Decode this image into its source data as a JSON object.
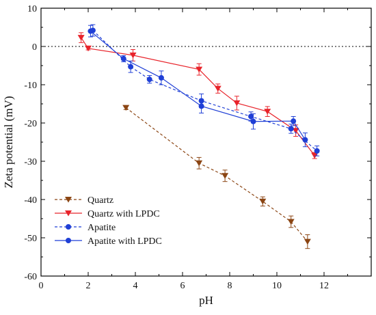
{
  "chart_data": {
    "type": "line",
    "title": "",
    "xlabel": "pH",
    "ylabel": "Zeta potential (mV)",
    "xlim": [
      0,
      14
    ],
    "ylim": [
      -60,
      10
    ],
    "xticks": [
      0,
      2,
      4,
      6,
      8,
      10,
      12
    ],
    "yticks": [
      10,
      0,
      -10,
      -20,
      -30,
      -40,
      -50,
      -60
    ],
    "zero_reference_line": true,
    "legend_position": "bottom-left",
    "series": [
      {
        "name": "Quartz",
        "color": "#8B4513",
        "marker": "triangle-down",
        "line_style": "dashed",
        "x": [
          3.6,
          6.7,
          7.8,
          9.4,
          10.6,
          11.3
        ],
        "y": [
          -16.0,
          -30.5,
          -33.8,
          -40.5,
          -45.8,
          -51.0
        ],
        "error": [
          0.5,
          1.5,
          1.5,
          1.2,
          1.5,
          1.8
        ]
      },
      {
        "name": "Quartz with LPDC",
        "color": "#E8232A",
        "marker": "triangle-down",
        "line_style": "solid",
        "x": [
          1.7,
          2.0,
          3.9,
          6.7,
          7.5,
          8.3,
          9.6,
          10.8,
          11.6
        ],
        "y": [
          2.3,
          -0.5,
          -2.3,
          -6.0,
          -11.0,
          -14.8,
          -17.0,
          -22.0,
          -28.5
        ],
        "error": [
          1.3,
          0.4,
          1.5,
          1.5,
          1.2,
          1.8,
          1.3,
          1.5,
          0.8
        ]
      },
      {
        "name": "Apatite",
        "color": "#1F3FD6",
        "marker": "circle",
        "line_style": "dashed",
        "x": [
          2.2,
          3.8,
          4.6,
          6.8,
          8.9,
          10.6,
          11.7
        ],
        "y": [
          4.2,
          -5.3,
          -8.6,
          -14.2,
          -18.3,
          -21.5,
          -27.3
        ],
        "error": [
          1.5,
          1.5,
          1.0,
          1.8,
          1.2,
          1.2,
          1.3
        ]
      },
      {
        "name": "Apatite with LPDC",
        "color": "#1F3FD6",
        "marker": "circle",
        "line_style": "solid",
        "x": [
          2.1,
          3.5,
          5.1,
          6.8,
          9.0,
          10.7,
          11.2
        ],
        "y": [
          4.0,
          -3.2,
          -8.2,
          -15.6,
          -19.6,
          -19.5,
          -24.4
        ],
        "error": [
          1.5,
          0.8,
          1.8,
          1.8,
          2.0,
          1.2,
          1.8
        ]
      }
    ]
  }
}
